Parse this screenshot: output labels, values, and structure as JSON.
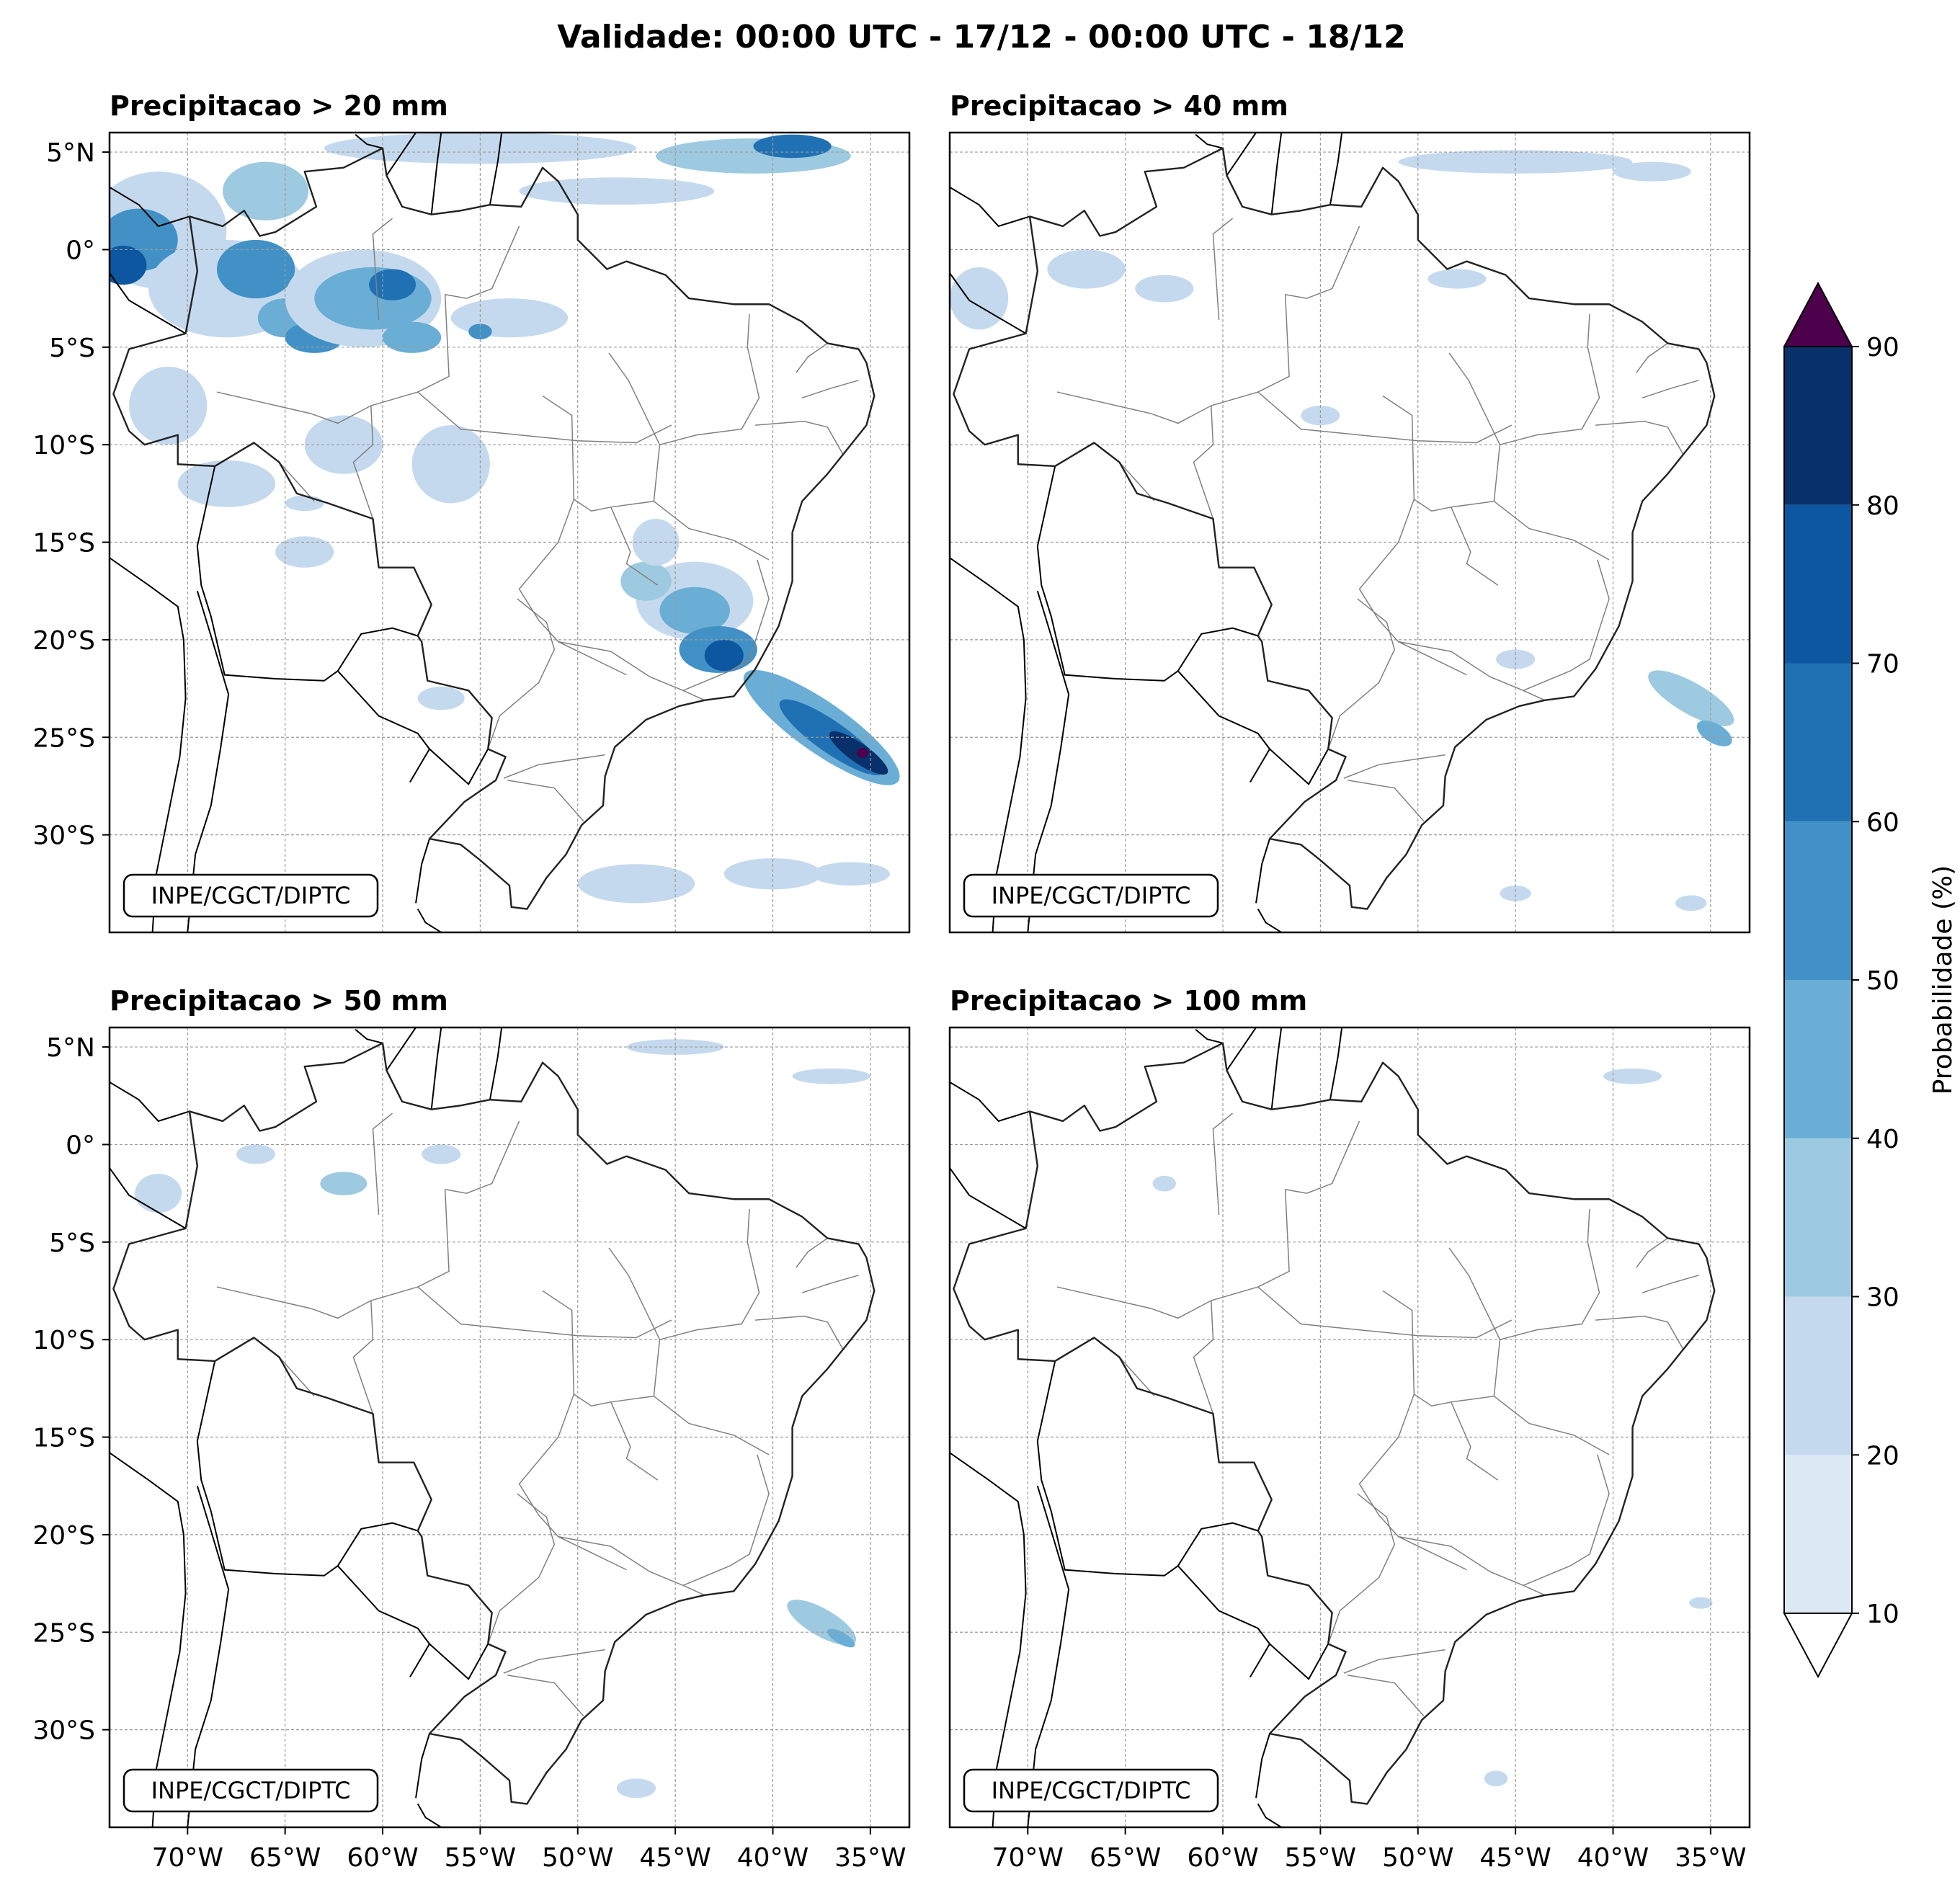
{
  "figure": {
    "title": "Validade: 00:00 UTC - 17/12 - 00:00 UTC - 18/12"
  },
  "panels": [
    {
      "title": "Precipitacao > 20 mm",
      "credit": "INPE/CGCT/DIPTC"
    },
    {
      "title": "Precipitacao > 40 mm",
      "credit": "INPE/CGCT/DIPTC"
    },
    {
      "title": "Precipitacao > 50 mm",
      "credit": "INPE/CGCT/DIPTC"
    },
    {
      "title": "Precipitacao > 100 mm",
      "credit": "INPE/CGCT/DIPTC"
    }
  ],
  "map": {
    "extent": {
      "lon_min": -74,
      "lon_max": -33,
      "lat_min": -35,
      "lat_max": 6
    },
    "lat_ticks": [
      {
        "value": 5,
        "label": "5°N"
      },
      {
        "value": 0,
        "label": "0°"
      },
      {
        "value": -5,
        "label": "5°S"
      },
      {
        "value": -10,
        "label": "10°S"
      },
      {
        "value": -15,
        "label": "15°S"
      },
      {
        "value": -20,
        "label": "20°S"
      },
      {
        "value": -25,
        "label": "25°S"
      },
      {
        "value": -30,
        "label": "30°S"
      }
    ],
    "lon_ticks": [
      {
        "value": -70,
        "label": "70°W"
      },
      {
        "value": -65,
        "label": "65°W"
      },
      {
        "value": -60,
        "label": "60°W"
      },
      {
        "value": -55,
        "label": "55°W"
      },
      {
        "value": -50,
        "label": "50°W"
      },
      {
        "value": -45,
        "label": "45°W"
      },
      {
        "value": -40,
        "label": "40°W"
      },
      {
        "value": -35,
        "label": "35°W"
      }
    ],
    "grid": true
  },
  "colorbar": {
    "label": "Probabilidade (%)",
    "levels": [
      10,
      20,
      30,
      40,
      50,
      60,
      70,
      80,
      90
    ],
    "tick_labels": [
      "10",
      "20",
      "30",
      "40",
      "50",
      "60",
      "70",
      "80",
      "90"
    ],
    "colors": [
      "#dde8f5",
      "#c5d9ee",
      "#9dcae0",
      "#6aaed6",
      "#4291c6",
      "#2070b4",
      "#0d56a0",
      "#08306b"
    ],
    "over_color": "#4d004b",
    "under_color": "#ffffff",
    "extend": "both"
  }
}
